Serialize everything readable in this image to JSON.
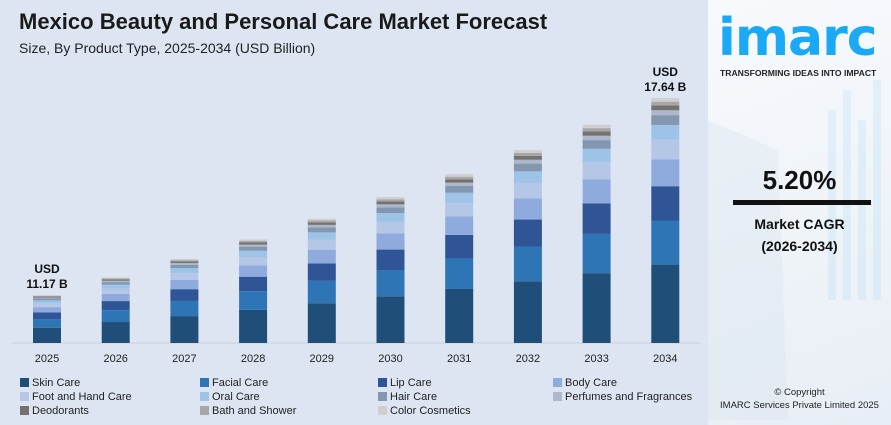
{
  "title": "Mexico Beauty and Personal Care Market Forecast",
  "subtitle": "Size, By Product Type, 2025-2034 (USD Billion)",
  "chart_data": {
    "type": "bar",
    "stacked": true,
    "title": "Mexico Beauty and Personal Care Market Forecast",
    "subtitle": "Size, By Product Type, 2025-2034 (USD Billion)",
    "categories": [
      "2025",
      "2026",
      "2027",
      "2028",
      "2029",
      "2030",
      "2031",
      "2032",
      "2033",
      "2034"
    ],
    "totals": [
      11.17,
      11.75,
      12.36,
      13.0,
      13.68,
      14.39,
      15.14,
      15.93,
      16.76,
      17.64
    ],
    "annotations": [
      {
        "category": "2025",
        "line1": "USD",
        "line2": "11.17 B"
      },
      {
        "category": "2034",
        "line1": "USD",
        "line2": "17.64 B"
      }
    ],
    "series": [
      {
        "name": "Skin Care",
        "color": "#1f4e79",
        "share": 0.32
      },
      {
        "name": "Facial Care",
        "color": "#2e75b6",
        "share": 0.18
      },
      {
        "name": "Lip Care",
        "color": "#2f5597",
        "share": 0.14
      },
      {
        "name": "Body Care",
        "color": "#8faadc",
        "share": 0.11
      },
      {
        "name": "Foot and Hand Care",
        "color": "#b4c7e7",
        "share": 0.08
      },
      {
        "name": "Oral Care",
        "color": "#9dc3e6",
        "share": 0.06
      },
      {
        "name": "Hair Care",
        "color": "#8497b0",
        "share": 0.04
      },
      {
        "name": "Perfumes and Fragrances",
        "color": "#adb9ca",
        "share": 0.02
      },
      {
        "name": "Deodorants",
        "color": "#767171",
        "share": 0.02
      },
      {
        "name": "Bath and Shower",
        "color": "#a6a6a6",
        "share": 0.015
      },
      {
        "name": "Color Cosmetics",
        "color": "#d0cece",
        "share": 0.015
      }
    ],
    "ylim": [
      9.6,
      18
    ],
    "axis_visible": false,
    "grid": false,
    "legend": "bottom"
  },
  "side": {
    "logo": "imarc",
    "tagline": "TRANSFORMING IDEAS INTO IMPACT",
    "cagr_value": "5.20%",
    "cagr_label": "Market CAGR",
    "cagr_period": "(2026-2034)",
    "copyright": "© Copyright",
    "company": "IMARC Services Private Limited 2025",
    "brand_color": "#1ba9f5"
  }
}
